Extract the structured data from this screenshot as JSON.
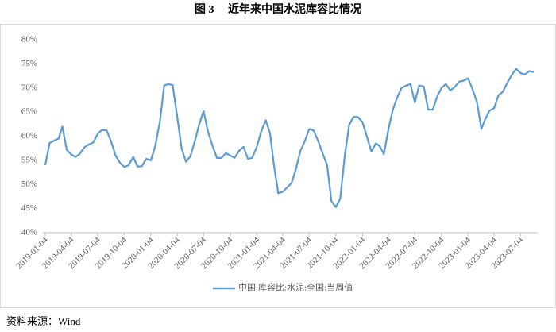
{
  "chart_data": {
    "type": "line",
    "title": "图 3　 近年来中国水泥库容比情况",
    "source": "资料来源：Wind",
    "x": [
      "2019-01-04",
      "2019-01-19",
      "2019-02-04",
      "2019-02-19",
      "2019-03-04",
      "2019-03-19",
      "2019-04-04",
      "2019-04-19",
      "2019-05-04",
      "2019-05-19",
      "2019-06-04",
      "2019-06-19",
      "2019-07-04",
      "2019-07-19",
      "2019-08-04",
      "2019-08-19",
      "2019-09-04",
      "2019-09-19",
      "2019-10-04",
      "2019-10-19",
      "2019-11-04",
      "2019-11-19",
      "2019-12-04",
      "2019-12-19",
      "2020-01-04",
      "2020-01-19",
      "2020-02-04",
      "2020-02-19",
      "2020-03-04",
      "2020-03-19",
      "2020-04-04",
      "2020-04-19",
      "2020-05-04",
      "2020-05-19",
      "2020-06-04",
      "2020-06-19",
      "2020-07-04",
      "2020-07-19",
      "2020-08-04",
      "2020-08-19",
      "2020-09-04",
      "2020-09-19",
      "2020-10-04",
      "2020-10-19",
      "2020-11-04",
      "2020-11-19",
      "2020-12-04",
      "2020-12-19",
      "2021-01-04",
      "2021-01-19",
      "2021-02-04",
      "2021-02-19",
      "2021-03-04",
      "2021-03-19",
      "2021-04-04",
      "2021-04-19",
      "2021-05-04",
      "2021-05-19",
      "2021-06-04",
      "2021-06-19",
      "2021-07-04",
      "2021-07-19",
      "2021-08-04",
      "2021-08-19",
      "2021-09-04",
      "2021-09-19",
      "2021-10-04",
      "2021-10-19",
      "2021-11-04",
      "2021-11-19",
      "2021-12-04",
      "2021-12-19",
      "2022-01-04",
      "2022-01-19",
      "2022-02-04",
      "2022-02-19",
      "2022-03-04",
      "2022-03-19",
      "2022-04-04",
      "2022-04-19",
      "2022-05-04",
      "2022-05-19",
      "2022-06-04",
      "2022-06-19",
      "2022-07-04",
      "2022-07-19",
      "2022-08-04",
      "2022-08-19",
      "2022-09-04",
      "2022-09-19",
      "2022-10-04",
      "2022-10-19",
      "2022-11-04",
      "2022-11-19",
      "2022-12-04",
      "2022-12-19",
      "2023-01-04",
      "2023-01-19",
      "2023-02-04",
      "2023-02-19",
      "2023-03-04",
      "2023-03-19",
      "2023-04-04",
      "2023-04-19",
      "2023-05-04",
      "2023-05-19",
      "2023-06-04",
      "2023-06-19",
      "2023-07-04",
      "2023-07-19",
      "2023-08-04",
      "2023-08-19"
    ],
    "series": [
      {
        "name": "中国:库容比:水泥:全国:当周值",
        "color": "#5b9bd5",
        "values": [
          54,
          58.6,
          59.1,
          59.5,
          62,
          57.2,
          56.2,
          55.7,
          56.4,
          57.7,
          58.3,
          58.7,
          60.5,
          61.3,
          61.2,
          59,
          56,
          54.5,
          53.6,
          54,
          55.7,
          53.7,
          53.8,
          55.3,
          55,
          58,
          63,
          70.5,
          70.8,
          70.6,
          64,
          57.5,
          54.7,
          55.8,
          59,
          62.5,
          65.2,
          61,
          58,
          55.5,
          55.5,
          56.5,
          56,
          55.5,
          57,
          57.8,
          55.3,
          55.5,
          57.8,
          61,
          63.3,
          60.5,
          54,
          48.2,
          48.5,
          49.4,
          50.3,
          53.2,
          57,
          59,
          61.5,
          61.2,
          59,
          56.5,
          54,
          46.5,
          45.3,
          47,
          56,
          62.3,
          64,
          64,
          62.9,
          60,
          56.8,
          58.5,
          58,
          56.3,
          61.5,
          65.5,
          68,
          70,
          70.5,
          70.8,
          67,
          70.5,
          70.3,
          65.5,
          65.5,
          68.2,
          70,
          70.8,
          69.5,
          70.2,
          71.3,
          71.5,
          72,
          69.8,
          67,
          61.5,
          63.5,
          65.3,
          65.8,
          68.5,
          69.2,
          71,
          72.7,
          74,
          73.1,
          72.8,
          73.5,
          73.3
        ]
      }
    ],
    "xlim": [
      "2019-01-04",
      "2023-08-19"
    ],
    "xticks": [
      "2019-01-04",
      "2019-04-04",
      "2019-07-04",
      "2019-10-04",
      "2020-01-04",
      "2020-04-04",
      "2020-07-04",
      "2020-10-04",
      "2021-01-04",
      "2021-04-04",
      "2021-07-04",
      "2021-10-04",
      "2022-01-04",
      "2022-04-04",
      "2022-07-04",
      "2022-10-04",
      "2023-01-04",
      "2023-04-04",
      "2023-07-04"
    ],
    "ylim": [
      40,
      80
    ],
    "yticks": [
      {
        "value": 40,
        "label": "40%"
      },
      {
        "value": 45,
        "label": "45%"
      },
      {
        "value": 50,
        "label": "50%"
      },
      {
        "value": 55,
        "label": "55%"
      },
      {
        "value": 60,
        "label": "60%"
      },
      {
        "value": 65,
        "label": "65%"
      },
      {
        "value": 70,
        "label": "70%"
      },
      {
        "value": 75,
        "label": "75%"
      },
      {
        "value": 80,
        "label": "80%"
      }
    ],
    "grid": false,
    "legend": "bottom"
  }
}
